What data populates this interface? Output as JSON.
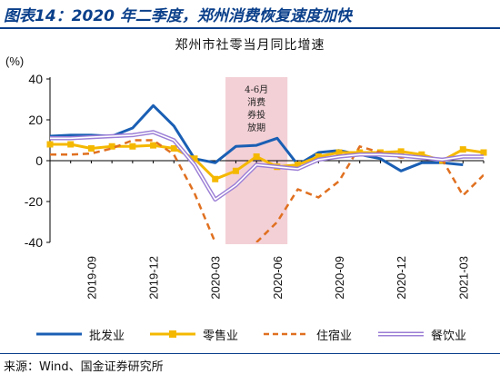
{
  "header": {
    "title": "图表14：2020 年二季度，郑州消费恢复速度加快"
  },
  "source": "来源：Wind、国金证券研究所",
  "annotation": {
    "lines": [
      "4-6月",
      "消费",
      "券投",
      "放期"
    ]
  },
  "chart_data": {
    "type": "line",
    "title": "郑州市社零当月同比增速",
    "ylabel": "(%)",
    "ylim": [
      -40,
      40
    ],
    "yticks": [
      40,
      20,
      0,
      -20,
      -40
    ],
    "x_range": [
      "2019-07",
      "2021-04"
    ],
    "xticks": [
      "2019-09",
      "2019-12",
      "2020-03",
      "2020-06",
      "2020-09",
      "2020-12",
      "2021-03"
    ],
    "grid": false,
    "legend_position": "bottom",
    "highlight_band": {
      "from": "2020-04",
      "to": "2020-06",
      "color": "#f3d0d6"
    },
    "series": [
      {
        "name": "批发业",
        "color": "#1a5fb4",
        "style": "solid",
        "marker": "none",
        "points": [
          [
            "2019-07",
            12
          ],
          [
            "2019-08",
            12.5
          ],
          [
            "2019-09",
            12.5
          ],
          [
            "2019-10",
            12
          ],
          [
            "2019-11",
            16
          ],
          [
            "2019-12",
            27
          ],
          [
            "2020-01",
            17
          ],
          [
            "2020-02",
            1
          ],
          [
            "2020-03",
            -1
          ],
          [
            "2020-04",
            7
          ],
          [
            "2020-05",
            7.5
          ],
          [
            "2020-06",
            11
          ],
          [
            "2020-07",
            -2
          ],
          [
            "2020-08",
            4
          ],
          [
            "2020-09",
            5
          ],
          [
            "2020-10",
            3
          ],
          [
            "2020-11",
            1
          ],
          [
            "2020-12",
            -5
          ],
          [
            "2021-01",
            -1
          ],
          [
            "2021-02",
            -1
          ],
          [
            "2021-03",
            -2
          ]
        ]
      },
      {
        "name": "零售业",
        "color": "#f5b800",
        "style": "solid",
        "marker": "square",
        "points": [
          [
            "2019-07",
            8
          ],
          [
            "2019-08",
            8
          ],
          [
            "2019-09",
            6
          ],
          [
            "2019-10",
            7
          ],
          [
            "2019-11",
            7
          ],
          [
            "2019-12",
            7.5
          ],
          [
            "2020-01",
            6
          ],
          [
            "2020-02",
            1
          ],
          [
            "2020-03",
            -9
          ],
          [
            "2020-04",
            -5
          ],
          [
            "2020-05",
            2
          ],
          [
            "2020-06",
            -3
          ],
          [
            "2020-07",
            -2
          ],
          [
            "2020-08",
            2
          ],
          [
            "2020-09",
            4
          ],
          [
            "2020-10",
            4
          ],
          [
            "2020-11",
            4
          ],
          [
            "2020-12",
            4.5
          ],
          [
            "2021-01",
            3
          ],
          [
            "2021-02",
            0
          ],
          [
            "2021-03",
            5.5
          ],
          [
            "2021-04",
            4
          ]
        ]
      },
      {
        "name": "住宿业",
        "color": "#e07020",
        "style": "dashed",
        "marker": "none",
        "points": [
          [
            "2019-07",
            3
          ],
          [
            "2019-08",
            3
          ],
          [
            "2019-09",
            3.5
          ],
          [
            "2019-10",
            6
          ],
          [
            "2019-11",
            10
          ],
          [
            "2019-12",
            10
          ],
          [
            "2020-01",
            3
          ],
          [
            "2020-02",
            -16
          ],
          [
            "2020-03",
            -40
          ],
          [
            "2020-04",
            null
          ],
          [
            "2020-05",
            -40
          ],
          [
            "2020-06",
            -30
          ],
          [
            "2020-07",
            -14
          ],
          [
            "2020-08",
            -18
          ],
          [
            "2020-09",
            -10
          ],
          [
            "2020-10",
            7
          ],
          [
            "2020-11",
            4
          ],
          [
            "2020-12",
            1.5
          ],
          [
            "2021-01",
            2
          ],
          [
            "2021-02",
            0.5
          ],
          [
            "2021-03",
            -17
          ],
          [
            "2021-04",
            -7
          ]
        ]
      },
      {
        "name": "餐饮业",
        "color": "#9c7fd6",
        "style": "double",
        "marker": "none",
        "points": [
          [
            "2019-07",
            11
          ],
          [
            "2019-08",
            11
          ],
          [
            "2019-09",
            11.5
          ],
          [
            "2019-10",
            12
          ],
          [
            "2019-11",
            12.5
          ],
          [
            "2019-12",
            14
          ],
          [
            "2020-01",
            10
          ],
          [
            "2020-02",
            -2
          ],
          [
            "2020-03",
            -19
          ],
          [
            "2020-04",
            -12
          ],
          [
            "2020-05",
            -2
          ],
          [
            "2020-06",
            -3
          ],
          [
            "2020-07",
            -4
          ],
          [
            "2020-08",
            0.5
          ],
          [
            "2020-09",
            2
          ],
          [
            "2020-10",
            3
          ],
          [
            "2020-11",
            3
          ],
          [
            "2020-12",
            2.5
          ],
          [
            "2021-01",
            1.5
          ],
          [
            "2021-02",
            0.5
          ],
          [
            "2021-03",
            2
          ],
          [
            "2021-04",
            2
          ]
        ]
      }
    ]
  }
}
